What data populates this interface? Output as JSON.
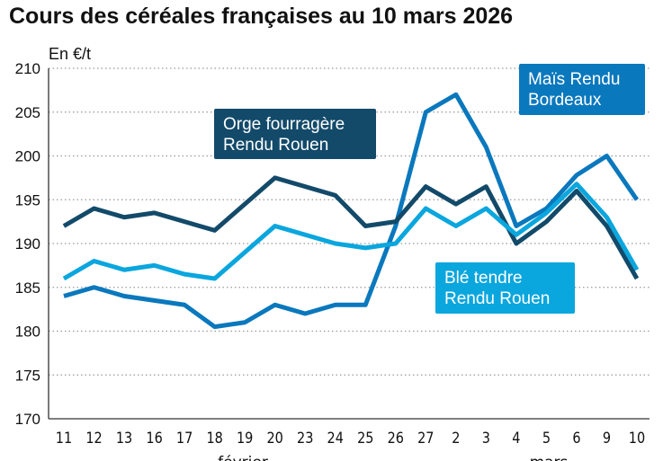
{
  "chart_data": {
    "type": "line",
    "title": "Cours des céréales françaises au 10 mars 2026",
    "ylabel": "En €/t",
    "ylim": [
      170,
      210
    ],
    "yticks": [
      170,
      175,
      180,
      185,
      190,
      195,
      200,
      205,
      210
    ],
    "grid": true,
    "categories": [
      "11",
      "12",
      "13",
      "16",
      "17",
      "18",
      "19",
      "20",
      "23",
      "24",
      "25",
      "26",
      "27",
      "2",
      "3",
      "4",
      "5",
      "6",
      "9",
      "10"
    ],
    "month_labels": [
      "février",
      "mars"
    ],
    "series": [
      {
        "name": "Orge fourragère Rendu Rouen",
        "label_lines": [
          "Orge fourragère",
          "Rendu Rouen"
        ],
        "color": "#134a6a",
        "values": [
          192,
          194,
          193,
          193.5,
          192.5,
          191.5,
          194.5,
          197.5,
          196.5,
          195.5,
          192,
          192.5,
          196.5,
          194.5,
          196.5,
          190,
          192.5,
          196,
          192,
          186
        ]
      },
      {
        "name": "Blé tendre Rendu Rouen",
        "label_lines": [
          "Blé tendre",
          "Rendu Rouen"
        ],
        "color": "#0aa6de",
        "values": [
          186,
          188,
          187,
          187.5,
          186.5,
          186,
          189,
          192,
          191,
          190,
          189.5,
          190,
          194,
          192,
          194,
          191,
          193.5,
          196.8,
          193,
          187
        ]
      },
      {
        "name": "Maïs Rendu Bordeaux",
        "label_lines": [
          "Maïs Rendu",
          "Bordeaux"
        ],
        "color": "#0a78bd",
        "values": [
          184,
          185,
          184,
          183.5,
          183,
          180.5,
          181,
          183,
          182,
          183,
          183,
          192,
          205,
          207,
          201,
          192,
          194,
          197.8,
          200,
          195
        ]
      }
    ]
  }
}
